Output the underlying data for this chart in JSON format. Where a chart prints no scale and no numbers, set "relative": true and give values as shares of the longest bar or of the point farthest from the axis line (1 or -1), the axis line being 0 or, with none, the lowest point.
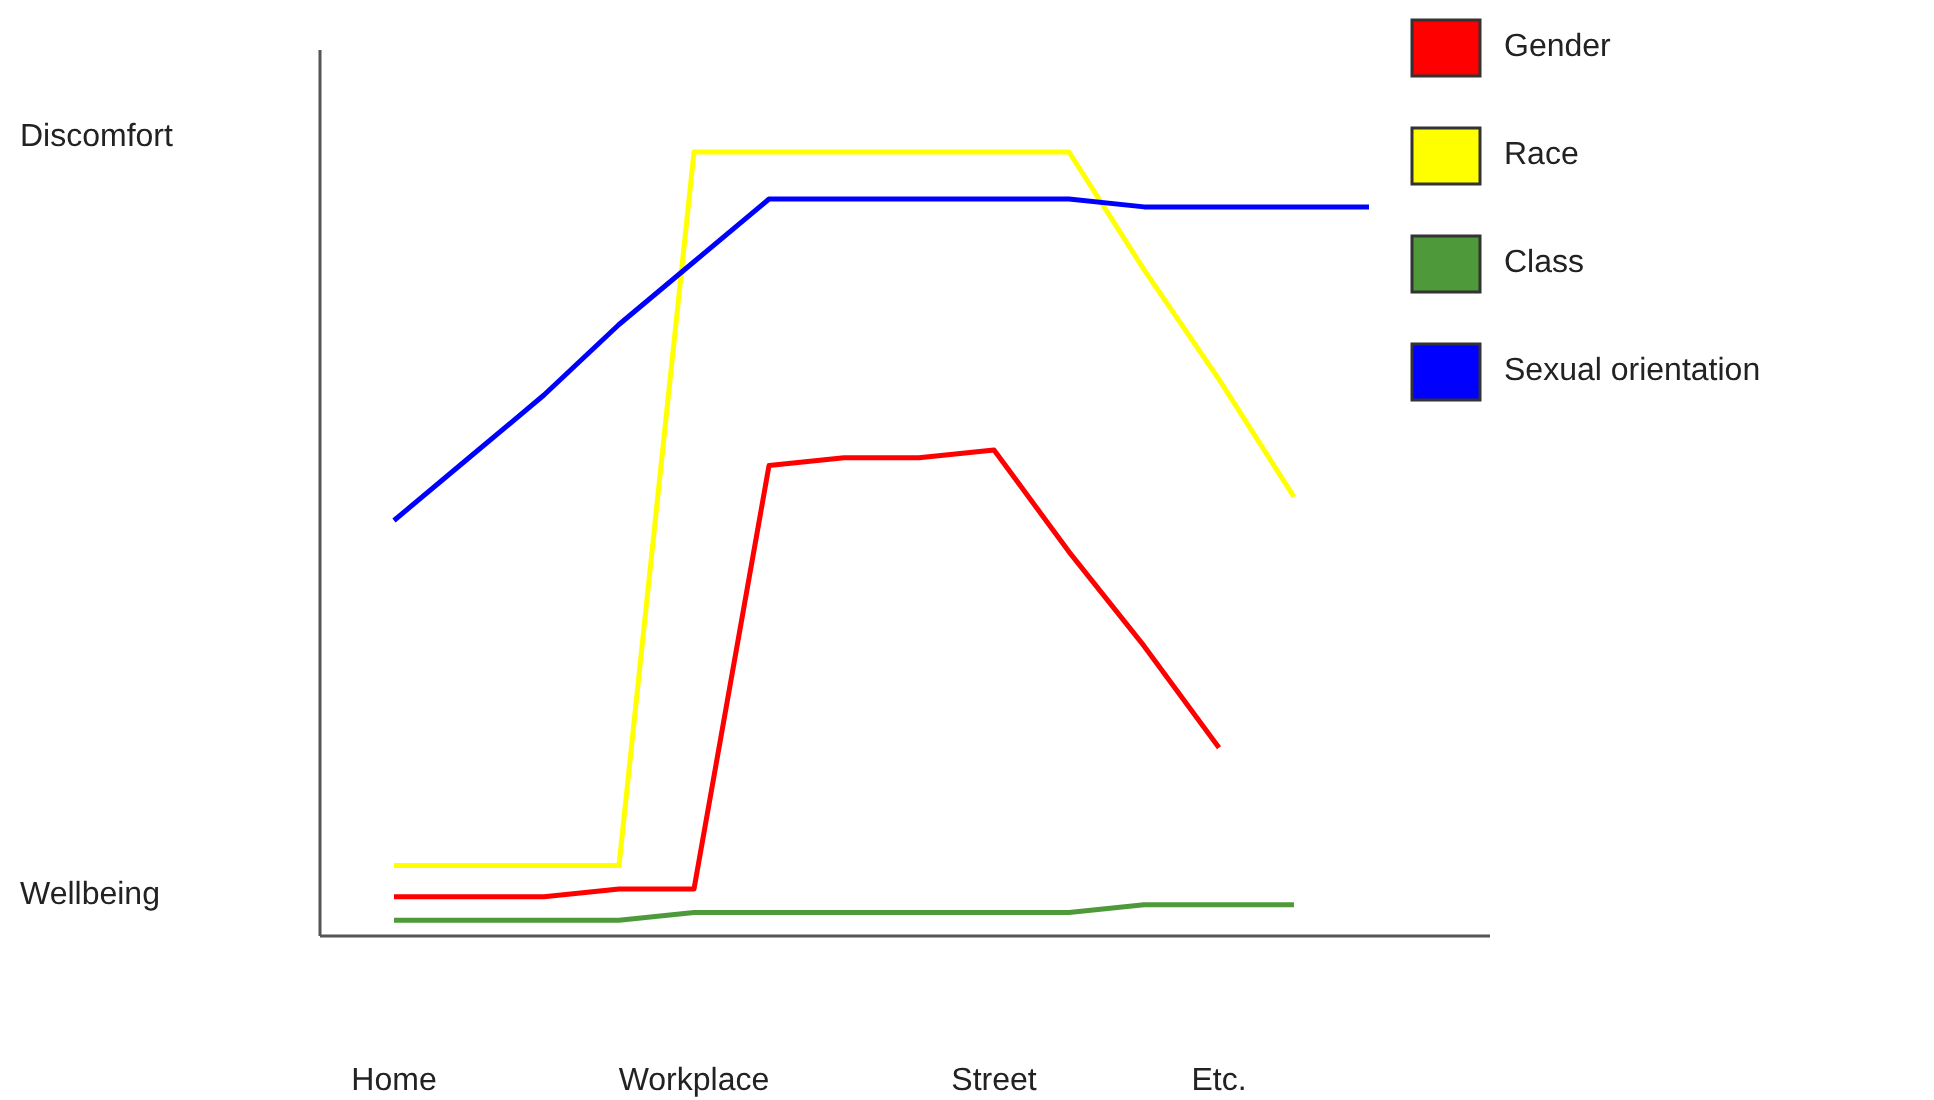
{
  "chart_data": {
    "type": "line",
    "relative": true,
    "categories": [
      "Home",
      null,
      null,
      null,
      "Workplace",
      null,
      null,
      null,
      "Street",
      null,
      null,
      "Etc.",
      null,
      null
    ],
    "annotations": [
      "Discomfort",
      "Wellbeing"
    ],
    "legend": "right",
    "marker": "none",
    "line_style": "solid",
    "grid": false,
    "series": [
      {
        "name": "Gender",
        "color": "#ff0000",
        "values": [
          0.05,
          0.05,
          0.05,
          0.06,
          0.06,
          0.6,
          0.61,
          0.61,
          0.62,
          0.49,
          0.37,
          0.24,
          null,
          null
        ]
      },
      {
        "name": "Race",
        "color": "#ffff00",
        "values": [
          0.09,
          0.09,
          0.09,
          0.09,
          1,
          1,
          1,
          1,
          1,
          1,
          0.85,
          0.71,
          0.56,
          null
        ]
      },
      {
        "name": "Class",
        "color": "#4e9a3a",
        "values": [
          0.02,
          0.02,
          0.02,
          0.02,
          0.03,
          0.03,
          0.03,
          0.03,
          0.03,
          0.03,
          0.04,
          0.04,
          0.04,
          null
        ]
      },
      {
        "name": "Sexual orientation",
        "color": "#0000ff",
        "values": [
          0.53,
          0.61,
          0.69,
          0.78,
          0.86,
          0.94,
          0.94,
          0.94,
          0.94,
          0.94,
          0.93,
          0.93,
          0.93,
          0.93
        ]
      }
    ]
  }
}
